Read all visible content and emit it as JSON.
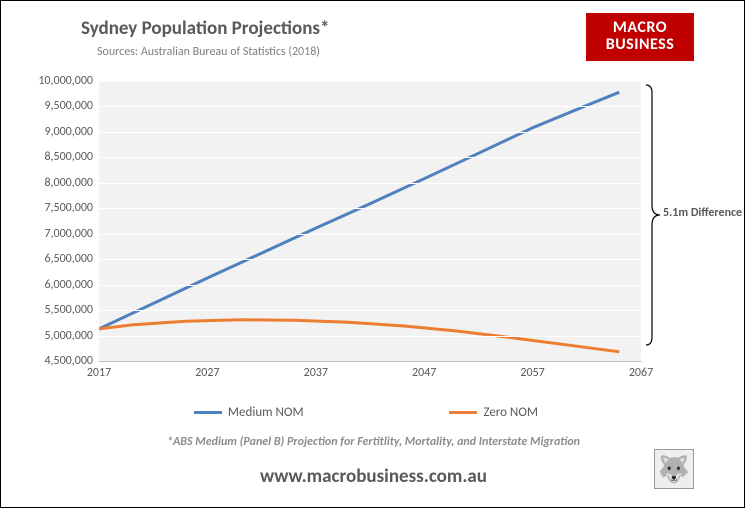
{
  "title": {
    "text": "Sydney Population Projections*",
    "fontsize": 19
  },
  "subtitle": {
    "text": "Sources: Australian Bureau of Statistics (2018)",
    "fontsize": 12
  },
  "logo": {
    "line1": "MACRO",
    "line2": "BUSINESS",
    "bg": "#c00000",
    "color": "#ffffff",
    "fontsize": 16
  },
  "chart": {
    "type": "line",
    "background_color": "#f2f2f2",
    "grid_color": "#ffffff",
    "x": {
      "min": 2017,
      "max": 2067,
      "ticks": [
        2017,
        2027,
        2037,
        2047,
        2057,
        2067
      ]
    },
    "y": {
      "min": 4500000,
      "max": 10000000,
      "step": 500000,
      "labels": [
        "4,500,000",
        "5,000,000",
        "5,500,000",
        "6,000,000",
        "6,500,000",
        "7,000,000",
        "7,500,000",
        "8,000,000",
        "8,500,000",
        "9,000,000",
        "9,500,000",
        "10,000,000"
      ]
    },
    "series": [
      {
        "name": "Medium NOM",
        "color": "#4f81bd",
        "line_width": 3,
        "points": [
          [
            2017,
            5130000
          ],
          [
            2022,
            5630000
          ],
          [
            2027,
            6130000
          ],
          [
            2032,
            6620000
          ],
          [
            2037,
            7110000
          ],
          [
            2042,
            7590000
          ],
          [
            2047,
            8080000
          ],
          [
            2052,
            8580000
          ],
          [
            2057,
            9080000
          ],
          [
            2062,
            9520000
          ],
          [
            2065,
            9780000
          ]
        ]
      },
      {
        "name": "Zero NOM",
        "color": "#ed7d31",
        "line_width": 3,
        "points": [
          [
            2017,
            5130000
          ],
          [
            2020,
            5210000
          ],
          [
            2025,
            5280000
          ],
          [
            2030,
            5310000
          ],
          [
            2035,
            5300000
          ],
          [
            2040,
            5260000
          ],
          [
            2045,
            5190000
          ],
          [
            2050,
            5090000
          ],
          [
            2055,
            4960000
          ],
          [
            2060,
            4820000
          ],
          [
            2065,
            4680000
          ]
        ]
      }
    ]
  },
  "annotation": {
    "text": "5.1m Difference",
    "bracket_color": "#000000"
  },
  "legend": {
    "items": [
      {
        "label": "Medium NOM",
        "color": "#4f81bd"
      },
      {
        "label": "Zero NOM",
        "color": "#ed7d31"
      }
    ]
  },
  "footnote": {
    "text": "*ABS Medium (Panel B) Projection for Fertitlity, Mortality, and Interstate Migration"
  },
  "url": {
    "text": "www.macrobusiness.com.au",
    "fontsize": 19
  },
  "axis_color": "#bfbfbf",
  "tick_fontsize": 12,
  "tick_color": "#595959"
}
